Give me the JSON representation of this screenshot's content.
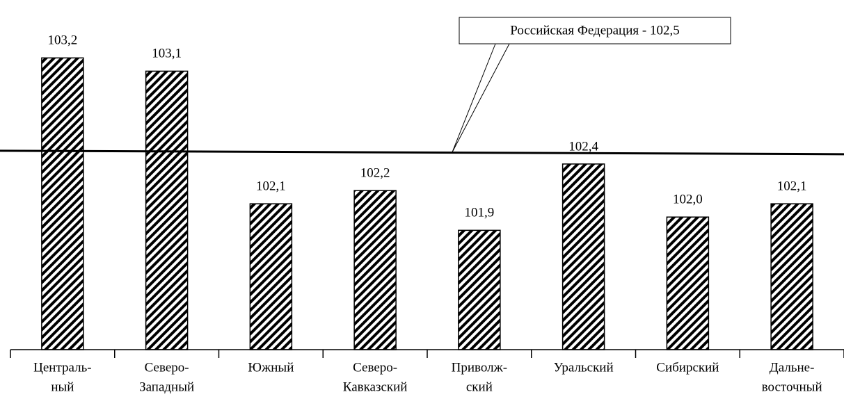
{
  "chart_data": {
    "type": "bar",
    "categories": [
      [
        "Централь-",
        "ный"
      ],
      [
        "Северо-",
        "Западный"
      ],
      [
        "Южный"
      ],
      [
        "Северо-",
        "Кавказский"
      ],
      [
        "Приволж-",
        "ский"
      ],
      [
        "Уральский"
      ],
      [
        "Сибирский"
      ],
      [
        "Дальне-",
        "восточный"
      ]
    ],
    "values": [
      103.2,
      103.1,
      102.1,
      102.2,
      101.9,
      102.4,
      102.0,
      102.1
    ],
    "value_labels": [
      "103,2",
      "103,1",
      "102,1",
      "102,2",
      "101,9",
      "102,4",
      "102,0",
      "102,1"
    ],
    "ylim": [
      101,
      103.6
    ],
    "reference": {
      "value": 102.5,
      "label": "Российская Федерация - 102,5"
    },
    "color": "#000000"
  }
}
